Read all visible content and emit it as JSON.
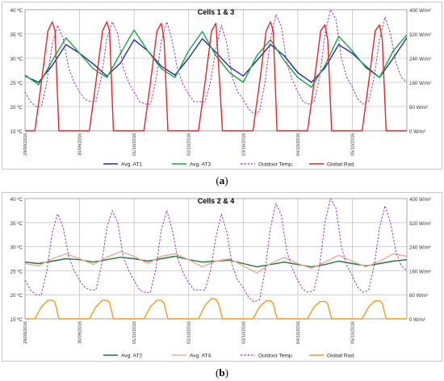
{
  "chart_data": [
    {
      "type": "line",
      "title": "Cells 1 & 3",
      "caption": "a",
      "x_tick_labels": [
        "29/09/2016",
        "30/09/2016",
        "01/10/2016",
        "02/10/2016",
        "03/10/2016",
        "04/10/2016",
        "05/10/2016"
      ],
      "x_unit": "day",
      "xlim": [
        0,
        7
      ],
      "y_left": {
        "ylim": [
          15,
          40
        ],
        "ticks": [
          "15 ºC",
          "20 ºC",
          "25 ºC",
          "30 ºC",
          "35 ºC",
          "40 ºC"
        ]
      },
      "y_right": {
        "ylim": [
          0,
          400
        ],
        "ticks": [
          "0 W/m²",
          "80 W/m²",
          "160 W/m²",
          "240 W/m²",
          "320 W/m²",
          "400 W/m²"
        ]
      },
      "grid": true,
      "legend_position": "bottom",
      "series": [
        {
          "name": "Avg. AT1",
          "axis": "left",
          "color": "#1f2f9a",
          "style": "solid",
          "x": [
            0,
            0.25,
            0.5,
            0.75,
            1,
            1.25,
            1.5,
            1.75,
            2,
            2.25,
            2.5,
            2.75,
            3,
            3.25,
            3.5,
            3.75,
            4,
            4.25,
            4.5,
            4.75,
            5,
            5.25,
            5.5,
            5.75,
            6,
            6.25,
            6.5,
            6.75,
            7
          ],
          "y": [
            26.3,
            25,
            28.5,
            32.8,
            31,
            28.8,
            26.3,
            29,
            33.8,
            31.5,
            28.3,
            26.5,
            30,
            34,
            31.2,
            28.2,
            26.3,
            29.5,
            32.8,
            30.5,
            27,
            25,
            28,
            32.8,
            31,
            28.3,
            26,
            30,
            34.2
          ]
        },
        {
          "name": "Avg. AT3",
          "axis": "left",
          "color": "#17a844",
          "style": "solid",
          "x": [
            0,
            0.25,
            0.5,
            0.75,
            1,
            1.25,
            1.5,
            1.75,
            2,
            2.25,
            2.5,
            2.75,
            3,
            3.25,
            3.5,
            3.75,
            4,
            4.25,
            4.5,
            4.75,
            5,
            5.25,
            5.5,
            5.75,
            6,
            6.25,
            6.5,
            6.75,
            7
          ],
          "y": [
            26.5,
            24.5,
            29.5,
            34.2,
            31,
            27.8,
            26,
            31,
            35.8,
            31.5,
            27.8,
            26,
            31.5,
            35.5,
            30.5,
            27,
            25,
            30.5,
            33.8,
            29.5,
            26,
            24,
            28.5,
            34.5,
            31.5,
            28,
            26,
            31.5,
            34.8
          ]
        },
        {
          "name": "Outdoor Temp.",
          "axis": "left",
          "color": "#9b35c9",
          "style": "dashed",
          "x": [
            0,
            0.1,
            0.2,
            0.3,
            0.4,
            0.5,
            0.6,
            0.7,
            0.8,
            0.9,
            1,
            1.1,
            1.2,
            1.3,
            1.4,
            1.5,
            1.6,
            1.7,
            1.8,
            1.9,
            2,
            2.1,
            2.2,
            2.3,
            2.4,
            2.5,
            2.6,
            2.7,
            2.8,
            2.9,
            3,
            3.1,
            3.2,
            3.3,
            3.4,
            3.5,
            3.6,
            3.7,
            3.8,
            3.9,
            4,
            4.1,
            4.2,
            4.3,
            4.4,
            4.5,
            4.6,
            4.7,
            4.8,
            4.9,
            5,
            5.1,
            5.2,
            5.3,
            5.4,
            5.5,
            5.6,
            5.7,
            5.8,
            5.9,
            6,
            6.1,
            6.2,
            6.3,
            6.4,
            6.5,
            6.6,
            6.7,
            6.8,
            6.9,
            7
          ],
          "y": [
            23,
            21,
            20,
            20,
            25,
            33,
            36.8,
            34,
            28,
            25,
            23,
            21.5,
            21,
            21,
            26,
            34,
            37.5,
            35,
            28,
            25,
            23,
            21,
            20.5,
            20.5,
            25.5,
            33.5,
            37.5,
            33.5,
            27.5,
            24.5,
            22.5,
            21,
            21,
            21,
            25,
            32,
            36.8,
            33,
            26,
            23,
            21.5,
            19.5,
            18.5,
            19,
            25,
            34,
            39,
            36.5,
            29,
            25.5,
            23,
            21,
            20.5,
            21,
            26,
            35,
            40,
            38,
            30,
            26,
            24,
            21.5,
            20.5,
            21,
            26,
            34,
            38.5,
            35,
            29,
            26,
            25
          ]
        },
        {
          "name": "Global Rad.",
          "axis": "right",
          "color": "#e8232a",
          "style": "solid",
          "x": [
            0,
            0.18,
            0.3,
            0.42,
            0.5,
            0.55,
            0.62,
            0.8,
            1.18,
            1.3,
            1.42,
            1.5,
            1.55,
            1.62,
            1.8,
            2.18,
            2.3,
            2.42,
            2.5,
            2.55,
            2.62,
            2.8,
            3.18,
            3.3,
            3.42,
            3.5,
            3.55,
            3.62,
            3.8,
            4.18,
            4.3,
            4.42,
            4.5,
            4.55,
            4.62,
            4.8,
            5.18,
            5.3,
            5.42,
            5.5,
            5.55,
            5.62,
            5.8,
            6.18,
            6.3,
            6.42,
            6.5,
            6.55,
            6.62,
            6.8,
            7
          ],
          "y": [
            0,
            0,
            160,
            330,
            360,
            330,
            0,
            0,
            0,
            160,
            330,
            360,
            330,
            0,
            0,
            0,
            160,
            330,
            355,
            300,
            0,
            0,
            0,
            160,
            330,
            355,
            210,
            0,
            0,
            0,
            160,
            330,
            360,
            330,
            0,
            0,
            0,
            160,
            330,
            350,
            300,
            0,
            0,
            0,
            160,
            330,
            350,
            300,
            0,
            0,
            0
          ]
        }
      ]
    },
    {
      "type": "line",
      "title": "Cells 2 & 4",
      "caption": "b",
      "x_tick_labels": [
        "29/09/2016",
        "30/09/2016",
        "01/10/2016",
        "02/10/2016",
        "03/10/2016",
        "04/10/2016",
        "05/10/2016"
      ],
      "x_unit": "day",
      "xlim": [
        0,
        7
      ],
      "y_left": {
        "ylim": [
          15,
          40
        ],
        "ticks": [
          "15 ºC",
          "20 ºC",
          "25 ºC",
          "30 ºC",
          "35 ºC",
          "40 ºC"
        ]
      },
      "y_right": {
        "ylim": [
          0,
          400
        ],
        "ticks": [
          "0 W/m²",
          "80 W/m²",
          "160 W/m²",
          "240 W/m²",
          "320 W/m²",
          "400 W/m²"
        ]
      },
      "grid": true,
      "legend_position": "bottom",
      "series": [
        {
          "name": "Avg. AT2",
          "axis": "left",
          "color": "#1f7a2e",
          "style": "solid",
          "x": [
            0,
            0.25,
            0.5,
            0.75,
            1,
            1.25,
            1.5,
            1.75,
            2,
            2.25,
            2.5,
            2.75,
            3,
            3.25,
            3.5,
            3.75,
            4,
            4.25,
            4.5,
            4.75,
            5,
            5.25,
            5.5,
            5.75,
            6,
            6.25,
            6.5,
            6.75,
            7
          ],
          "y": [
            26.8,
            26.5,
            27,
            27.5,
            27.3,
            26.8,
            27.3,
            27.8,
            27.5,
            27,
            27.5,
            28,
            27.3,
            26.8,
            27,
            27.2,
            26.5,
            25.8,
            26.3,
            26.8,
            26.3,
            25.8,
            26.3,
            27,
            26.5,
            26,
            26.5,
            27,
            27.3
          ]
        },
        {
          "name": "Avg. AT4",
          "axis": "left",
          "color": "#f0a898",
          "style": "solid",
          "x": [
            0,
            0.25,
            0.5,
            0.75,
            1,
            1.25,
            1.5,
            1.75,
            2,
            2.25,
            2.5,
            2.75,
            3,
            3.25,
            3.5,
            3.75,
            4,
            4.25,
            4.5,
            4.75,
            5,
            5.25,
            5.5,
            5.75,
            6,
            6.25,
            6.5,
            6.75,
            7
          ],
          "y": [
            26.5,
            26,
            27.5,
            28.5,
            27.5,
            26.3,
            27.8,
            29,
            28,
            26.5,
            28,
            28.5,
            27.3,
            25.8,
            27,
            27.5,
            26,
            24.5,
            26.5,
            27.8,
            26.5,
            25.5,
            26.8,
            28.2,
            27,
            25.8,
            27,
            28.5,
            28
          ]
        },
        {
          "name": "Outdoor Temp.",
          "axis": "left",
          "color": "#9b35c9",
          "style": "dashed",
          "x": [
            0,
            0.1,
            0.2,
            0.3,
            0.4,
            0.5,
            0.6,
            0.7,
            0.8,
            0.9,
            1,
            1.1,
            1.2,
            1.3,
            1.4,
            1.5,
            1.6,
            1.7,
            1.8,
            1.9,
            2,
            2.1,
            2.2,
            2.3,
            2.4,
            2.5,
            2.6,
            2.7,
            2.8,
            2.9,
            3,
            3.1,
            3.2,
            3.3,
            3.4,
            3.5,
            3.6,
            3.7,
            3.8,
            3.9,
            4,
            4.1,
            4.2,
            4.3,
            4.4,
            4.5,
            4.6,
            4.7,
            4.8,
            4.9,
            5,
            5.1,
            5.2,
            5.3,
            5.4,
            5.5,
            5.6,
            5.7,
            5.8,
            5.9,
            6,
            6.1,
            6.2,
            6.3,
            6.4,
            6.5,
            6.6,
            6.7,
            6.8,
            6.9,
            7
          ],
          "y": [
            23,
            21,
            20,
            20,
            25,
            33,
            36.8,
            34,
            28,
            25,
            23,
            21.5,
            21,
            21,
            26,
            34,
            37.5,
            35,
            28,
            25,
            23,
            21,
            20.5,
            20.5,
            25.5,
            33.5,
            37.5,
            33.5,
            27.5,
            24.5,
            22.5,
            21,
            21,
            21,
            25,
            32,
            36.8,
            33,
            26,
            23,
            21.5,
            19.5,
            18.5,
            19,
            25,
            34,
            39,
            36.5,
            29,
            25.5,
            23,
            21,
            20.5,
            21,
            26,
            35,
            40,
            38,
            30,
            26,
            24,
            21.5,
            20.5,
            21,
            26,
            34,
            38.5,
            35,
            29,
            26,
            25
          ]
        },
        {
          "name": "Global Rad.",
          "axis": "right",
          "color": "#f39a1e",
          "style": "solid",
          "x": [
            0,
            0.18,
            0.3,
            0.42,
            0.5,
            0.55,
            0.62,
            0.8,
            1.18,
            1.3,
            1.42,
            1.5,
            1.55,
            1.62,
            1.8,
            2.18,
            2.3,
            2.42,
            2.5,
            2.55,
            2.62,
            2.8,
            3.18,
            3.3,
            3.42,
            3.5,
            3.55,
            3.62,
            3.8,
            4.18,
            4.3,
            4.42,
            4.5,
            4.55,
            4.62,
            4.8,
            5.18,
            5.3,
            5.42,
            5.5,
            5.55,
            5.62,
            5.8,
            6.18,
            6.3,
            6.42,
            6.5,
            6.55,
            6.62,
            6.8,
            7
          ],
          "y": [
            0,
            0,
            40,
            62,
            62,
            55,
            0,
            0,
            0,
            40,
            62,
            62,
            55,
            0,
            0,
            0,
            40,
            62,
            62,
            52,
            0,
            0,
            0,
            45,
            68,
            65,
            50,
            0,
            0,
            0,
            40,
            60,
            60,
            52,
            0,
            0,
            0,
            40,
            58,
            58,
            50,
            0,
            0,
            0,
            40,
            60,
            60,
            52,
            0,
            0,
            0
          ]
        }
      ]
    }
  ],
  "captions": [
    "a",
    "b"
  ]
}
